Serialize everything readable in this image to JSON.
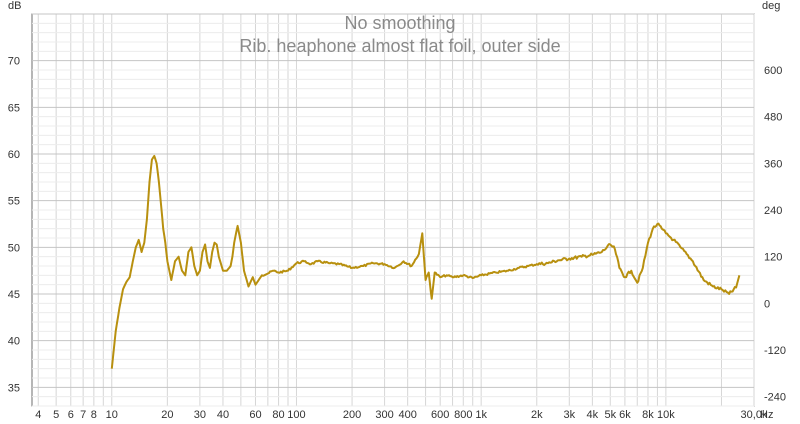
{
  "chart_data": {
    "type": "line",
    "title": "No smoothing",
    "subtitle": "Rib. heaphone almost flat foil, outer side",
    "x_unit": "Hz",
    "y_unit_left": "dB",
    "y_unit_right": "deg",
    "x_scale": "log",
    "xlim": [
      3.7,
      30000
    ],
    "ylim": [
      33,
      75
    ],
    "ylim_right": [
      -264,
      744
    ],
    "grid": true,
    "x_ticks": [
      4,
      5,
      6,
      7,
      8,
      10,
      20,
      30,
      40,
      60,
      80,
      100,
      200,
      300,
      400,
      600,
      800,
      1000,
      2000,
      3000,
      4000,
      5000,
      6000,
      8000,
      10000,
      30000
    ],
    "x_tick_labels": [
      "4",
      "5",
      "6",
      "7",
      "8",
      "10",
      "20",
      "30",
      "40",
      "60",
      "80",
      "100",
      "200",
      "300",
      "400",
      "600",
      "800",
      "1k",
      "2k",
      "3k",
      "4k",
      "5k",
      "6k",
      "8k",
      "10k",
      "30,0k"
    ],
    "y_ticks": [
      35,
      40,
      45,
      50,
      55,
      60,
      65,
      70
    ],
    "y_tick_labels": [
      "35",
      "40",
      "45",
      "50",
      "55",
      "60",
      "65",
      "70"
    ],
    "y_ticks_right": [
      -240,
      -120,
      0,
      120,
      240,
      360,
      480,
      600
    ],
    "y_tick_labels_right": [
      "-240",
      "-120",
      "0",
      "120",
      "240",
      "360",
      "480",
      "600"
    ],
    "series": [
      {
        "name": "",
        "color": "#b8900f",
        "x": [
          10,
          10.5,
          11,
          11.5,
          12,
          12.5,
          13,
          13.5,
          14,
          14.5,
          15,
          15.5,
          16,
          16.5,
          17,
          17.5,
          18,
          18.5,
          19,
          19.5,
          20,
          21,
          22,
          23,
          24,
          25,
          26,
          27,
          28,
          29,
          30,
          31,
          32,
          33,
          34,
          35,
          36,
          37,
          38,
          40,
          42,
          44,
          45,
          46,
          48,
          50,
          52,
          55,
          58,
          60,
          65,
          70,
          75,
          80,
          90,
          100,
          110,
          120,
          130,
          150,
          170,
          200,
          230,
          260,
          300,
          340,
          380,
          420,
          460,
          480,
          500,
          520,
          540,
          560,
          600,
          650,
          700,
          800,
          900,
          1000,
          1200,
          1400,
          1600,
          1800,
          2000,
          2300,
          2600,
          3000,
          3500,
          4000,
          4500,
          5000,
          5300,
          5600,
          6000,
          6500,
          7000,
          7500,
          8000,
          8500,
          9000,
          9500,
          10000,
          11000,
          12000,
          14000,
          16000,
          18000,
          20000,
          22000,
          24000,
          25000
        ],
        "y": [
          37,
          41,
          43.5,
          45.5,
          46.3,
          46.8,
          48.5,
          50,
          50.8,
          49.5,
          50.5,
          53,
          57,
          59.4,
          59.8,
          59,
          57,
          54.5,
          52,
          50.5,
          48.5,
          46.5,
          48.5,
          49,
          47.5,
          47,
          49.5,
          50,
          48,
          47,
          47.5,
          49.5,
          50.3,
          48.5,
          47.8,
          49.5,
          50.5,
          50.3,
          49,
          47.5,
          47.5,
          48,
          49,
          50.5,
          52.3,
          50.5,
          47.5,
          45.8,
          46.8,
          46,
          47,
          47.2,
          47.5,
          47.3,
          47.5,
          48.3,
          48.5,
          48.2,
          48.5,
          48.3,
          48.2,
          47.8,
          48,
          48.3,
          48.2,
          47.8,
          48.5,
          48,
          49.3,
          51.5,
          46.5,
          47.3,
          44.5,
          47.3,
          46.8,
          47,
          46.8,
          47,
          46.7,
          47,
          47.3,
          47.5,
          47.8,
          48,
          48.2,
          48.3,
          48.6,
          48.8,
          49,
          49.2,
          49.5,
          50.3,
          49.8,
          47.8,
          46.8,
          47.5,
          46.2,
          47.8,
          50.5,
          52,
          52.5,
          52,
          51.5,
          50.8,
          50,
          48.5,
          46.5,
          45.8,
          45.5,
          45,
          45.7,
          47
        ]
      }
    ]
  }
}
